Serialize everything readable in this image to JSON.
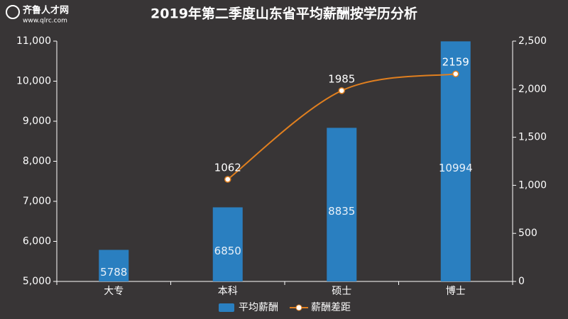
{
  "watermark": {
    "name": "齐鲁人才网",
    "url": "www.qlrc.com"
  },
  "chart_data": {
    "type": "bar-line",
    "title": "2019年第二季度山东省平均薪酬按学历分析",
    "categories": [
      "大专",
      "本科",
      "硕士",
      "博士"
    ],
    "series": [
      {
        "name": "平均薪酬",
        "type": "bar",
        "color": "#2a7fc0",
        "values": [
          5788,
          6850,
          8835,
          10994
        ]
      },
      {
        "name": "薪酬差距",
        "type": "line",
        "axis": "y2",
        "color": "#e07f1f",
        "values": [
          null,
          1062,
          1985,
          2159
        ]
      }
    ],
    "ylim": [
      5000,
      11000
    ],
    "yticks": [
      {
        "value": 5000,
        "label": "5,000"
      },
      {
        "value": 6000,
        "label": "6,000"
      },
      {
        "value": 7000,
        "label": "7,000"
      },
      {
        "value": 8000,
        "label": "8,000"
      },
      {
        "value": 9000,
        "label": "9,000"
      },
      {
        "value": 10000,
        "label": "10,000"
      },
      {
        "value": 11000,
        "label": "11,000"
      }
    ],
    "y2lim": [
      0,
      2500
    ],
    "y2ticks": [
      0,
      500,
      {
        "value": 1000,
        "label": "1,000"
      },
      {
        "value": 1500,
        "label": "1,500"
      },
      {
        "value": 2000,
        "label": "2,000"
      },
      {
        "value": 2500,
        "label": "2,500"
      }
    ],
    "legend": "bottom"
  }
}
